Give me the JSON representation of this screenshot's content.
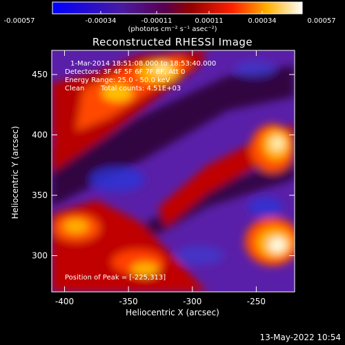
{
  "colorbar": {
    "ticks": [
      "-0.00057",
      "-0.00034",
      "-0.00011",
      "0.00011",
      "0.00034",
      "0.00057"
    ],
    "unit_label": "(photons cm⁻² s⁻¹ asec⁻²)"
  },
  "chart_data": {
    "type": "heatmap",
    "title": "Reconstructed RHESSI Image",
    "xlabel": "Heliocentric X (arcsec)",
    "ylabel": "Heliocentric Y (arcsec)",
    "xlim": [
      -410,
      -220
    ],
    "ylim": [
      270,
      470
    ],
    "x_ticks": [
      "-400",
      "-350",
      "-300",
      "-250"
    ],
    "y_ticks": [
      "300",
      "350",
      "400",
      "450"
    ],
    "colorscale_range": [
      -0.00057,
      0.00057
    ],
    "peak": [
      -225,
      313
    ],
    "annotations": {
      "time": "1-Mar-2014 18:51:08.000 to 18:53:40.000",
      "detectors": "Detectors: 3F 4F 5F 6F 7F 8F, Att 0",
      "energy": "Energy Range: 25.0 - 50.0 keV",
      "method": "Clean",
      "counts": "Total counts: 4.51E+03",
      "peak_text": "Position of Peak = [-225,313]"
    }
  },
  "timestamp": "13-May-2022 10:54"
}
